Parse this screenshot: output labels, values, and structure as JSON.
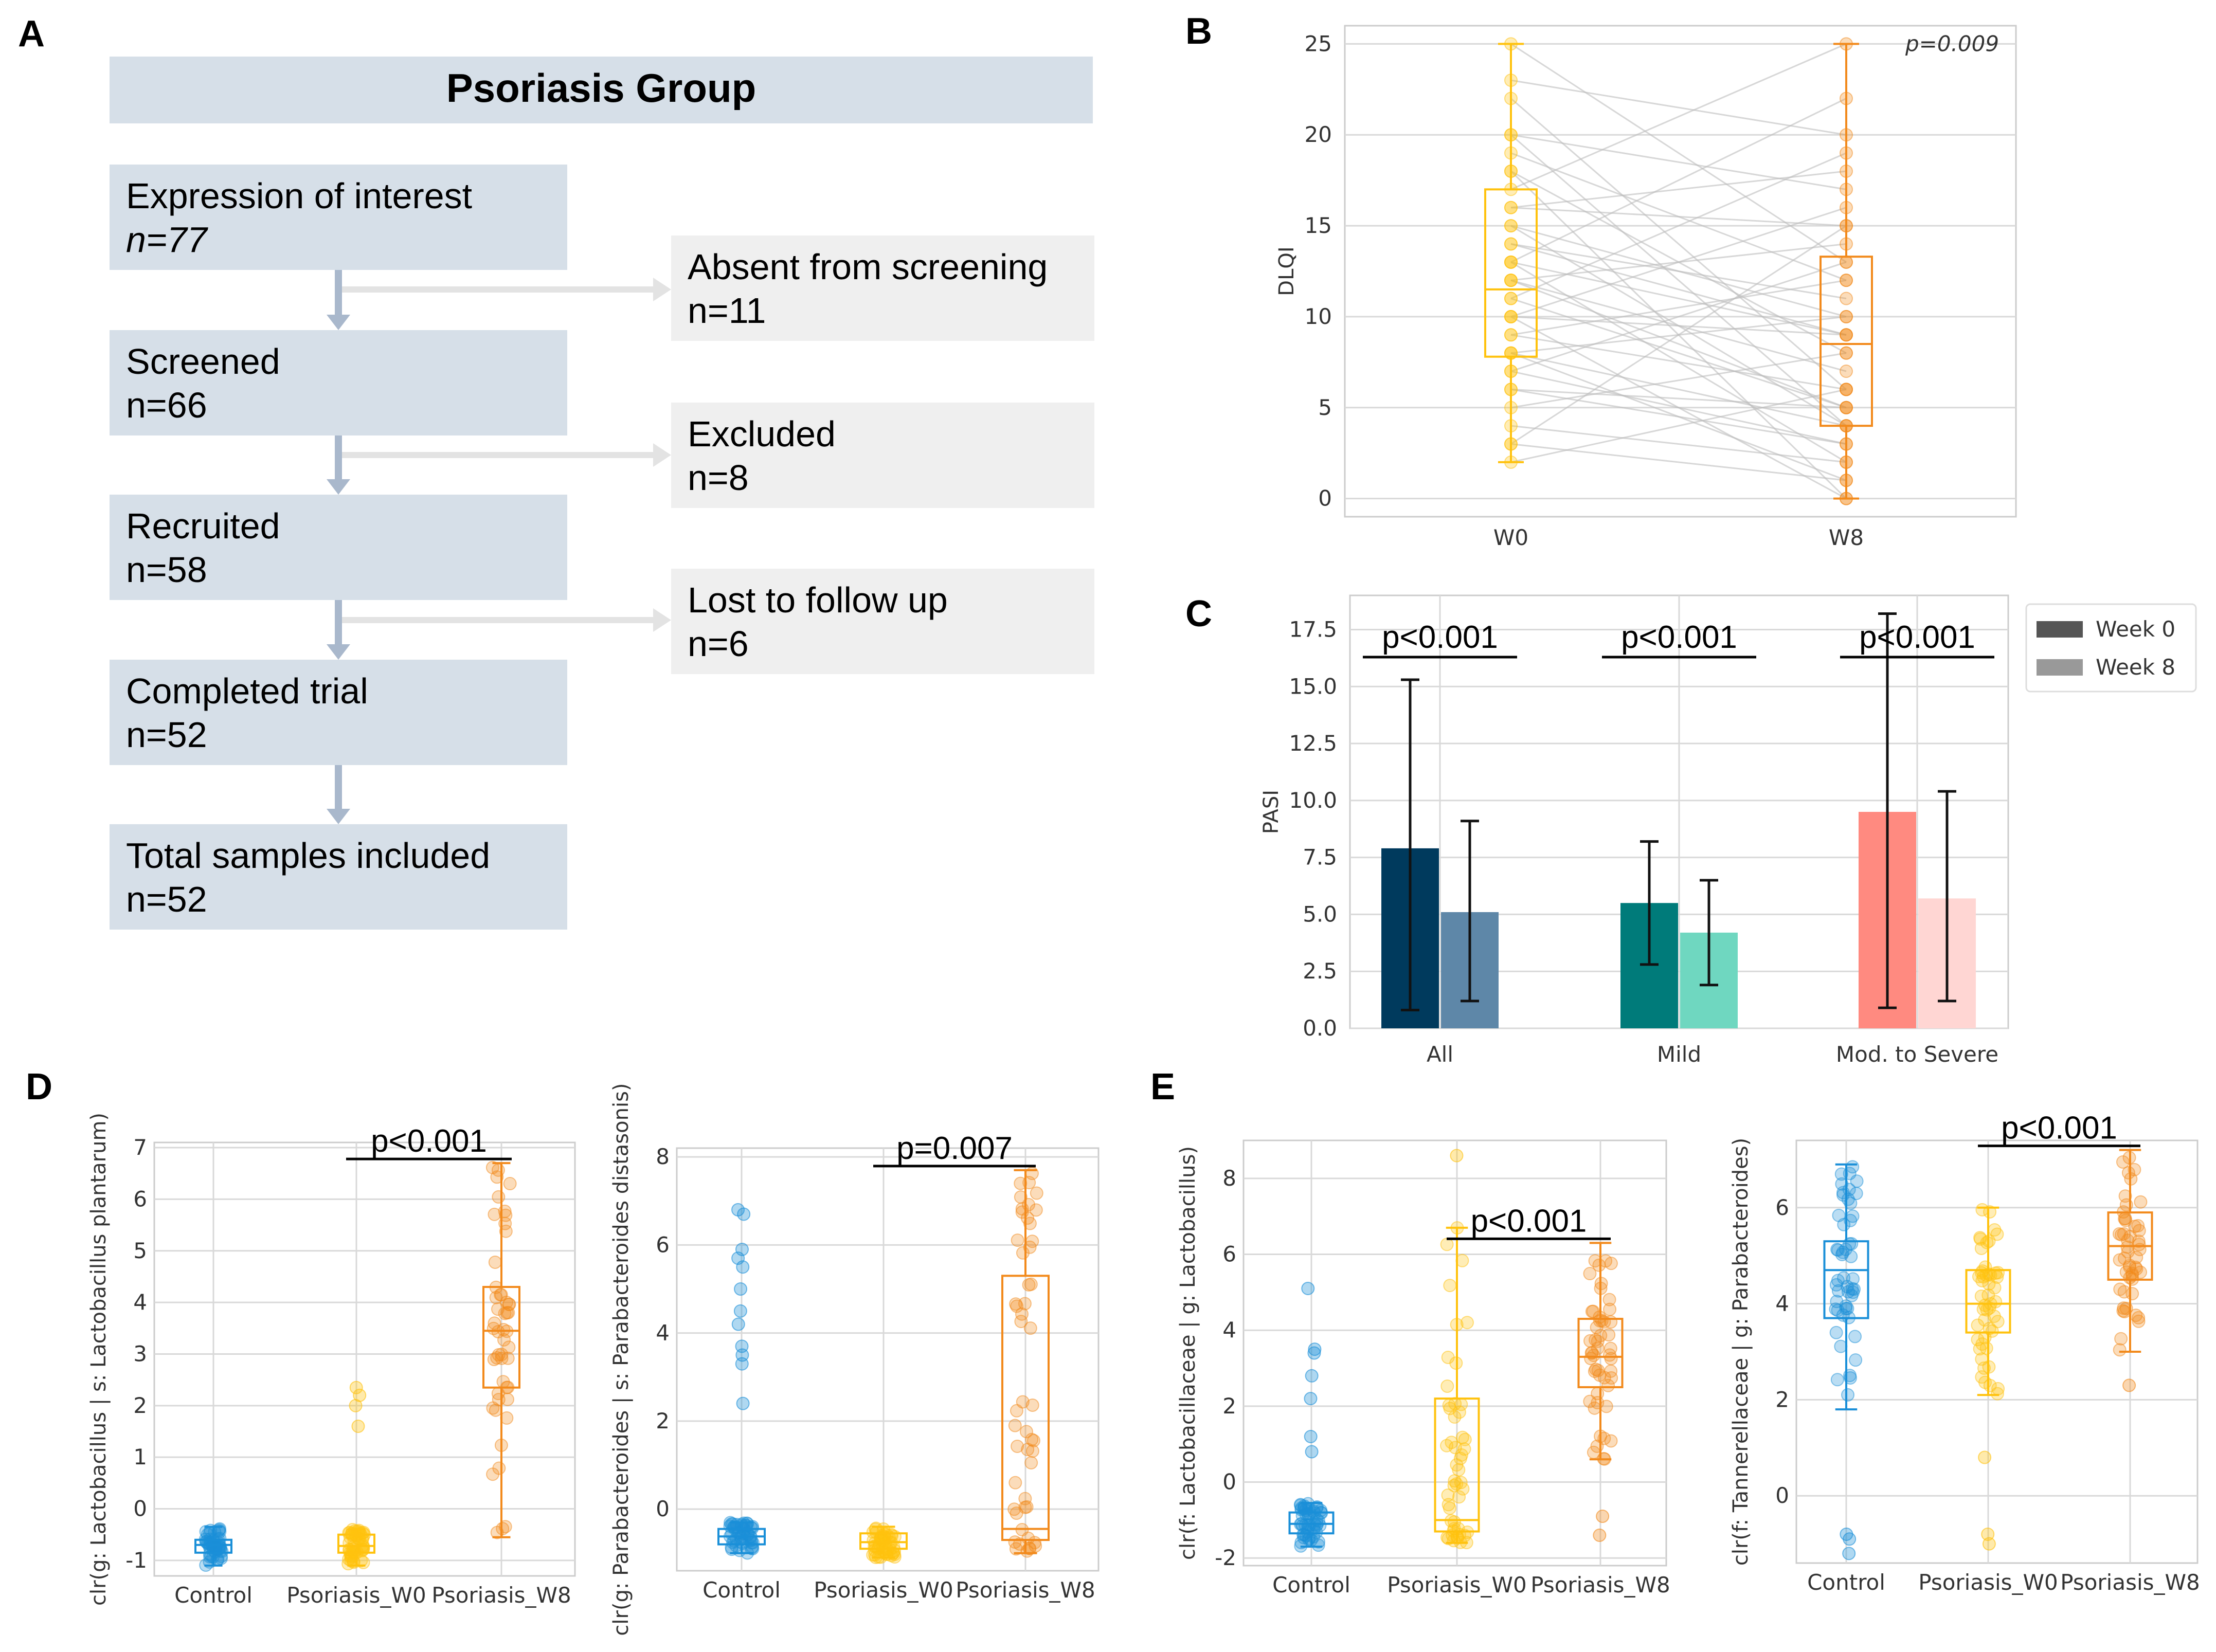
{
  "panels": {
    "A": "A",
    "B": "B",
    "C": "C",
    "D": "D",
    "E": "E"
  },
  "flow": {
    "header": "Psoriasis Group",
    "main": [
      {
        "label": "Expression of interest",
        "n": "n=77"
      },
      {
        "label": "Screened",
        "n": "n=66"
      },
      {
        "label": "Recruited",
        "n": "n=58"
      },
      {
        "label": "Completed trial",
        "n": "n=52"
      },
      {
        "label": "Total samples included",
        "n": "n=52"
      }
    ],
    "side": [
      {
        "label": "Absent from screening",
        "n": "n=11"
      },
      {
        "label": "Excluded",
        "n": "n=8"
      },
      {
        "label": "Lost to follow up",
        "n": "n=6"
      }
    ]
  },
  "colors": {
    "control": "#1a8fd8",
    "w0": "#ffc20e",
    "w8": "#f28a1c",
    "all0": "#003a5d",
    "all8": "#5e87a8",
    "mild0": "#007b7a",
    "mild8": "#6fd7c0",
    "mod0": "#ff8a80",
    "mod8": "#ffd6d3"
  },
  "chart_data": [
    {
      "id": "B",
      "type": "box-paired",
      "title": "",
      "categories": [
        "W0",
        "W8"
      ],
      "ylabel": "DLQI",
      "ylim": [
        -1,
        26
      ],
      "yticks": [
        0,
        5,
        10,
        15,
        20,
        25
      ],
      "pvalue": "p=0.009",
      "boxes": [
        {
          "category": "W0",
          "whisker_low": 2,
          "q1": 7.8,
          "median": 11.5,
          "q3": 17,
          "whisker_high": 25
        },
        {
          "category": "W8",
          "whisker_low": 0,
          "q1": 4,
          "median": 8.5,
          "q3": 13.3,
          "whisker_high": 25
        }
      ],
      "pairs": [
        [
          25,
          13
        ],
        [
          23,
          20
        ],
        [
          22,
          6
        ],
        [
          20,
          17
        ],
        [
          19,
          12
        ],
        [
          18,
          8
        ],
        [
          17,
          25
        ],
        [
          16,
          15
        ],
        [
          15,
          4
        ],
        [
          15,
          10
        ],
        [
          14,
          11
        ],
        [
          13,
          9
        ],
        [
          13,
          2
        ],
        [
          12,
          14
        ],
        [
          12,
          7
        ],
        [
          11,
          5
        ],
        [
          11,
          19
        ],
        [
          10,
          0
        ],
        [
          10,
          9
        ],
        [
          9,
          6
        ],
        [
          9,
          12
        ],
        [
          8,
          4
        ],
        [
          8,
          1
        ],
        [
          8,
          10
        ],
        [
          7,
          3
        ],
        [
          6,
          5
        ],
        [
          5,
          8
        ],
        [
          4,
          2
        ],
        [
          3,
          15
        ],
        [
          3,
          1
        ],
        [
          2,
          6
        ],
        [
          13,
          22
        ],
        [
          16,
          18
        ],
        [
          18,
          0
        ],
        [
          20,
          4
        ],
        [
          12,
          5
        ],
        [
          10,
          16
        ],
        [
          7,
          13
        ],
        [
          6,
          3
        ],
        [
          14,
          9
        ]
      ]
    },
    {
      "id": "C",
      "type": "bar",
      "ylabel": "PASI",
      "ylim": [
        0,
        19
      ],
      "yticks": [
        "0.0",
        "2.5",
        "5.0",
        "7.5",
        "10.0",
        "12.5",
        "15.0",
        "17.5"
      ],
      "categories": [
        "All",
        "Mild",
        "Mod. to Severe"
      ],
      "legend": [
        "Week 0",
        "Week 8"
      ],
      "legend_position": "top-right",
      "series": [
        {
          "name": "Week 0",
          "values": [
            7.9,
            5.5,
            9.5
          ],
          "err_low": [
            0.8,
            2.8,
            0.9
          ],
          "err_high": [
            15.3,
            8.2,
            18.2
          ]
        },
        {
          "name": "Week 8",
          "values": [
            5.1,
            4.2,
            5.7
          ],
          "err_low": [
            1.2,
            1.9,
            1.2
          ],
          "err_high": [
            9.1,
            6.5,
            10.4
          ]
        }
      ],
      "pvalues": [
        "p<0.001",
        "p<0.001",
        "p<0.001"
      ]
    },
    {
      "id": "D1",
      "type": "box",
      "ylabel": "clr(g: Lactobacillus | s: Lactobacillus plantarum)",
      "categories": [
        "Control",
        "Psoriasis_W0",
        "Psoriasis_W8"
      ],
      "ylim": [
        -1.3,
        7.1
      ],
      "yticks": [
        -1,
        0,
        1,
        2,
        3,
        4,
        5,
        6,
        7
      ],
      "pvalue": "p<0.001",
      "boxes": [
        {
          "whisker_low": -1.1,
          "q1": -0.85,
          "median": -0.7,
          "q3": -0.6,
          "whisker_high": -0.35
        },
        {
          "whisker_low": -1.1,
          "q1": -0.85,
          "median": -0.72,
          "q3": -0.5,
          "whisker_high": -0.4
        },
        {
          "whisker_low": -0.55,
          "q1": 2.35,
          "median": 3.45,
          "q3": 4.3,
          "whisker_high": 6.7
        }
      ],
      "outliers": [
        [],
        [
          1.6,
          2.0,
          2.2,
          2.35
        ],
        []
      ]
    },
    {
      "id": "D2",
      "type": "box",
      "ylabel": "clr(g: Parabacteroides | s: Parabacteroides distasonis)",
      "categories": [
        "Control",
        "Psoriasis_W0",
        "Psoriasis_W8"
      ],
      "ylim": [
        -1.4,
        8.2
      ],
      "yticks": [
        0,
        2,
        4,
        6,
        8
      ],
      "pvalue": "p=0.007",
      "boxes": [
        {
          "whisker_low": -1.0,
          "q1": -0.8,
          "median": -0.62,
          "q3": -0.45,
          "whisker_high": -0.3
        },
        {
          "whisker_low": -1.1,
          "q1": -0.9,
          "median": -0.75,
          "q3": -0.55,
          "whisker_high": -0.4
        },
        {
          "whisker_low": -1.0,
          "q1": -0.7,
          "median": -0.45,
          "q3": 5.3,
          "whisker_high": 7.7
        }
      ],
      "outliers": [
        [
          2.4,
          3.3,
          3.5,
          3.7,
          4.2,
          4.5,
          5.0,
          5.5,
          5.7,
          5.9,
          6.7,
          6.8
        ],
        [],
        []
      ]
    },
    {
      "id": "E1",
      "type": "box",
      "ylabel": "clr(f: Lactobacillaceae | g: Lactobacillus)",
      "categories": [
        "Control",
        "Psoriasis_W0",
        "Psoriasis_W8"
      ],
      "ylim": [
        -2.2,
        9
      ],
      "yticks": [
        -2,
        0,
        2,
        4,
        6,
        8
      ],
      "pvalue": "p<0.001",
      "boxes": [
        {
          "whisker_low": -1.7,
          "q1": -1.35,
          "median": -1.1,
          "q3": -0.8,
          "whisker_high": -0.55
        },
        {
          "whisker_low": -1.6,
          "q1": -1.3,
          "median": -1.0,
          "q3": 2.2,
          "whisker_high": 6.7
        },
        {
          "whisker_low": 0.6,
          "q1": 2.5,
          "median": 3.3,
          "q3": 4.3,
          "whisker_high": 6.3
        }
      ],
      "outliers": [
        [
          0.8,
          1.2,
          2.2,
          2.8,
          3.4,
          3.5,
          5.1
        ],
        [
          8.6
        ],
        [
          -1.4,
          -0.9
        ]
      ]
    },
    {
      "id": "E2",
      "type": "box",
      "ylabel": "clr(f: Tannerellaceae | g: Parabacteroides)",
      "categories": [
        "Control",
        "Psoriasis_W0",
        "Psoriasis_W8"
      ],
      "ylim": [
        -1.4,
        7.4
      ],
      "yticks": [
        0,
        2,
        4,
        6
      ],
      "pvalue": "p<0.001",
      "boxes": [
        {
          "whisker_low": 1.8,
          "q1": 3.7,
          "median": 4.7,
          "q3": 5.3,
          "whisker_high": 6.9
        },
        {
          "whisker_low": 2.1,
          "q1": 3.4,
          "median": 4.0,
          "q3": 4.7,
          "whisker_high": 6.0
        },
        {
          "whisker_low": 3.0,
          "q1": 4.5,
          "median": 5.2,
          "q3": 5.9,
          "whisker_high": 7.2
        }
      ],
      "outliers": [
        [
          -0.8,
          -0.9,
          -1.2
        ],
        [
          -0.8,
          -1.0,
          0.8
        ],
        [
          2.3
        ]
      ]
    }
  ]
}
